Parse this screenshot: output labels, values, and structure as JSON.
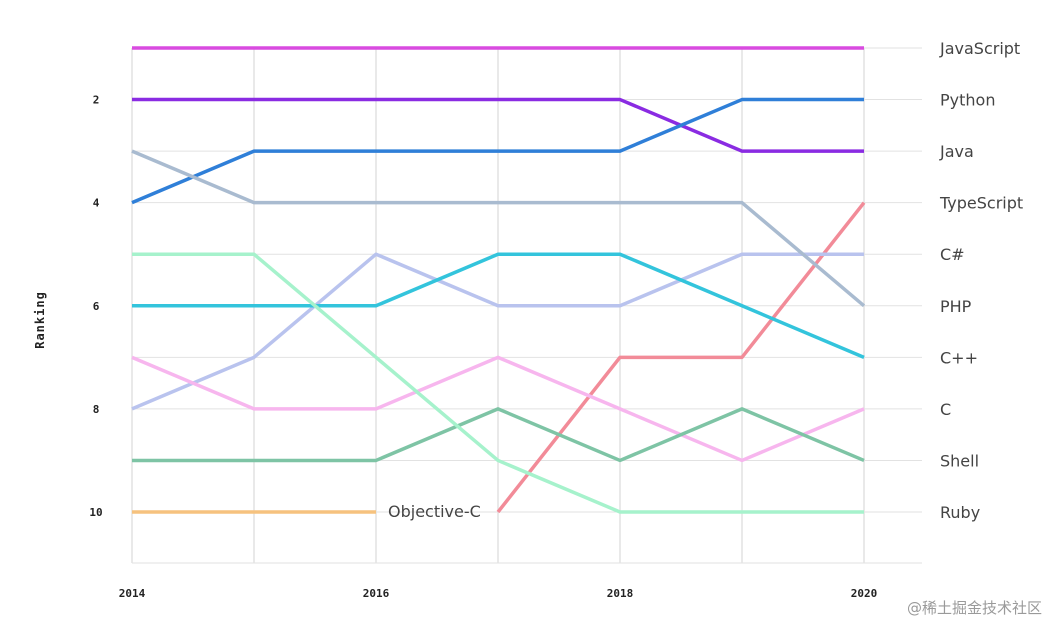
{
  "chart_data": {
    "type": "line",
    "ylabel": "Ranking",
    "x": [
      2014,
      2015,
      2016,
      2017,
      2018,
      2019,
      2020
    ],
    "x_tick_labels": [
      "2014",
      "2016",
      "2018",
      "2020"
    ],
    "y_tick_labels": [
      "2",
      "4",
      "6",
      "8",
      "10"
    ],
    "ylim": [
      1,
      10
    ],
    "y_inverted": true,
    "grid": true,
    "series": [
      {
        "name": "JavaScript",
        "color": "#d94be0",
        "values": [
          1,
          1,
          1,
          1,
          1,
          1,
          1
        ]
      },
      {
        "name": "Python",
        "color": "#8a2be2",
        "values": [
          2,
          2,
          2,
          2,
          2,
          3,
          3
        ]
      },
      {
        "name": "Java",
        "color": "#2f7fd8",
        "values": [
          4,
          3,
          3,
          3,
          3,
          2,
          2
        ]
      },
      {
        "name": "TypeScript",
        "color": "#f28b98",
        "values": [
          null,
          null,
          null,
          10,
          7,
          7,
          4
        ]
      },
      {
        "name": "C#",
        "color": "#b9c3ee",
        "values": [
          8,
          7,
          5,
          6,
          6,
          5,
          5
        ]
      },
      {
        "name": "PHP",
        "color": "#a9bbd0",
        "values": [
          3,
          4,
          4,
          4,
          4,
          4,
          6
        ]
      },
      {
        "name": "C++",
        "color": "#33c4dc",
        "values": [
          6,
          6,
          6,
          5,
          5,
          6,
          7
        ]
      },
      {
        "name": "C",
        "color": "#f7b6ee",
        "values": [
          7,
          8,
          8,
          7,
          8,
          9,
          8
        ]
      },
      {
        "name": "Shell",
        "color": "#7ec4a5",
        "values": [
          9,
          9,
          9,
          8,
          9,
          8,
          9
        ]
      },
      {
        "name": "Ruby",
        "color": "#a6f2cc",
        "values": [
          5,
          5,
          7,
          9,
          10,
          10,
          10
        ]
      },
      {
        "name": "Objective-C",
        "color": "#f6c27e",
        "values": [
          10,
          10,
          10,
          null,
          null,
          null,
          null
        ]
      }
    ],
    "right_labels": [
      "JavaScript",
      "Python",
      "Java",
      "TypeScript",
      "C#",
      "PHP",
      "C++",
      "C",
      "Shell",
      "Ruby"
    ],
    "annotation": "Objective-C"
  },
  "watermark": "@稀土掘金技术社区"
}
